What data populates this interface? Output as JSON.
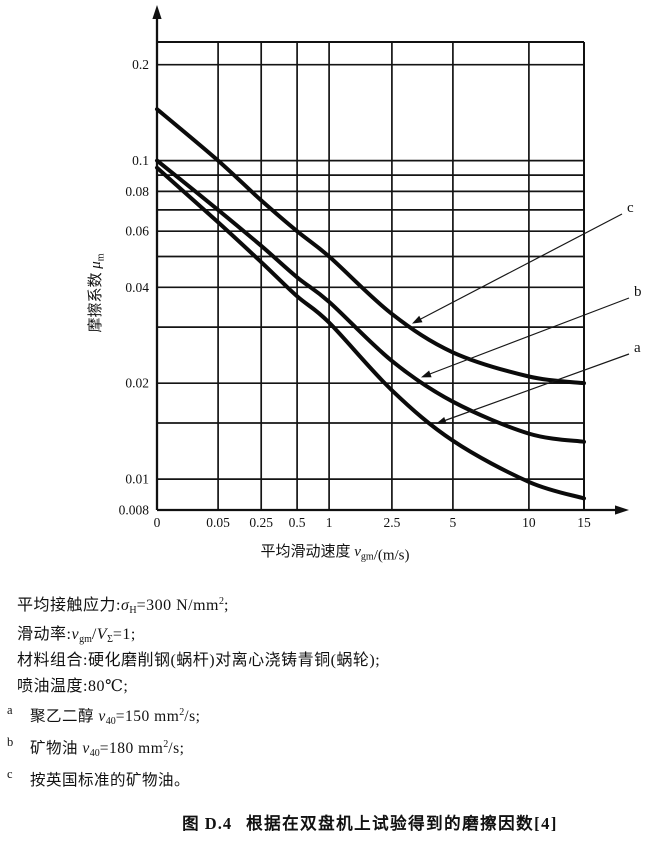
{
  "colors": {
    "ink": "#111111",
    "background": "#ffffff"
  },
  "chart": {
    "y_axis_label_parts": [
      {
        "t": "摩擦系数 "
      },
      {
        "t": "μ",
        "i": 1
      },
      {
        "t": "m",
        "sub": 1
      }
    ],
    "x_axis_label_parts": [
      {
        "t": "平均滑动速度 "
      },
      {
        "t": "v",
        "i": 1
      },
      {
        "t": "gm",
        "sub": 1
      },
      {
        "t": "/(m/s)"
      }
    ],
    "x_tick_labels": [
      "0",
      "0.05",
      "0.25",
      "0.5",
      "1",
      "2.5",
      "5",
      "10",
      "15"
    ],
    "y_tick_labels": [
      "0.2",
      "0.1",
      "0.08",
      "0.06",
      "0.04",
      "0.02",
      "0.01",
      "0.008"
    ]
  },
  "chart_data": {
    "type": "line",
    "title": "图 D.4 根据在双盘机上试验得到的磨擦因数[4]",
    "xlabel": "平均滑动速度 vgm/(m/s)",
    "ylabel": "摩擦系数 μm",
    "x_scale": "compressed log-like axis",
    "y_scale": "log",
    "grid": true,
    "x": [
      0,
      0.05,
      0.25,
      0.5,
      1,
      2.5,
      5,
      10,
      15
    ],
    "ylim": [
      0.008,
      0.2356
    ],
    "y_ticks_labeled": [
      0.2,
      0.1,
      0.08,
      0.06,
      0.04,
      0.02,
      0.01,
      0.008
    ],
    "y_gridlines_unlabeled": [
      0.09,
      0.07,
      0.05,
      0.03,
      0.015
    ],
    "series": [
      {
        "name": "c",
        "description": "按英国标准的矿物油",
        "values": [
          0.145,
          0.1,
          0.075,
          0.06,
          0.05,
          0.033,
          0.025,
          0.021,
          0.02
        ]
      },
      {
        "name": "b",
        "description": "矿物油 ν40=180 mm²/s",
        "values": [
          0.1,
          0.07,
          0.054,
          0.043,
          0.036,
          0.0235,
          0.0175,
          0.0139,
          0.0131
        ]
      },
      {
        "name": "a",
        "description": "聚乙二醇 ν40=150 mm²/s",
        "values": [
          0.095,
          0.064,
          0.048,
          0.0375,
          0.031,
          0.019,
          0.0132,
          0.0098,
          0.0087
        ]
      }
    ]
  },
  "conditions": [
    {
      "parts": [
        {
          "t": "平均接触应力:"
        },
        {
          "t": "σ",
          "i": 1
        },
        {
          "t": "H",
          "sub": 1
        },
        {
          "t": "=300 N/mm"
        },
        {
          "t": "2",
          "sup": 1
        },
        {
          "t": ";"
        }
      ]
    },
    {
      "parts": [
        {
          "t": "滑动率:"
        },
        {
          "t": "v",
          "i": 1
        },
        {
          "t": "gm",
          "sub": 1
        },
        {
          "t": "/"
        },
        {
          "t": "V",
          "i": 1
        },
        {
          "t": "Σ",
          "sub": 1
        },
        {
          "t": "=1;"
        }
      ]
    },
    {
      "parts": [
        {
          "t": "材料组合:硬化磨削钢(蜗杆)对离心浇铸青铜(蜗轮);"
        }
      ]
    },
    {
      "parts": [
        {
          "t": "喷油温度:80℃;"
        }
      ]
    }
  ],
  "footnotes": [
    {
      "marker": "a",
      "parts": [
        {
          "t": "聚乙二醇 "
        },
        {
          "t": "ν",
          "i": 1
        },
        {
          "t": "40",
          "sub": 1
        },
        {
          "t": "=150 mm"
        },
        {
          "t": "2",
          "sup": 1
        },
        {
          "t": "/s;"
        }
      ]
    },
    {
      "marker": "b",
      "parts": [
        {
          "t": "矿物油 "
        },
        {
          "t": "ν",
          "i": 1
        },
        {
          "t": "40",
          "sub": 1
        },
        {
          "t": "=180 mm"
        },
        {
          "t": "2",
          "sup": 1
        },
        {
          "t": "/s;"
        }
      ]
    },
    {
      "marker": "c",
      "parts": [
        {
          "t": "按英国标准的矿物油。"
        }
      ]
    }
  ],
  "caption": {
    "fig_label": "图 D.4",
    "title": "根据在双盘机上试验得到的磨擦因数",
    "ref": "[4]"
  }
}
